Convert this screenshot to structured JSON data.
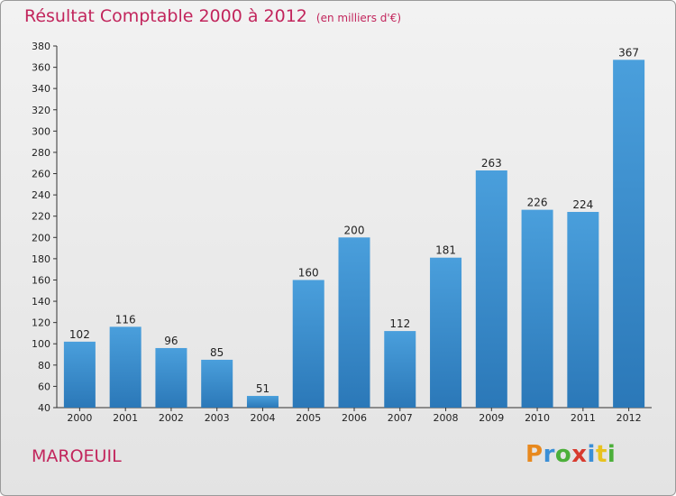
{
  "title": "Résultat Comptable 2000 à 2012",
  "subtitle": "(en milliers d'€)",
  "location": "MAROEUIL",
  "brand": {
    "letters": [
      "P",
      "r",
      "o",
      "x",
      "i",
      "t",
      "i"
    ],
    "colors": [
      "#e8891e",
      "#3b8fd6",
      "#4caf3a",
      "#d83a2e",
      "#3b8fd6",
      "#e8c21e",
      "#4caf3a"
    ]
  },
  "colors": {
    "bar": "#4a9fdc",
    "bar_dark": "#2b78b8",
    "title": "#c2255c"
  },
  "chart_data": {
    "type": "bar",
    "title": "Résultat Comptable 2000 à 2012",
    "subtitle": "(en milliers d'€)",
    "categories": [
      "2000",
      "2001",
      "2002",
      "2003",
      "2004",
      "2005",
      "2006",
      "2007",
      "2008",
      "2009",
      "2010",
      "2011",
      "2012"
    ],
    "values": [
      102,
      116,
      96,
      85,
      51,
      160,
      200,
      112,
      181,
      263,
      226,
      224,
      367
    ],
    "ylim": [
      40,
      380
    ],
    "yticks": [
      40,
      60,
      80,
      100,
      120,
      140,
      160,
      180,
      200,
      220,
      240,
      260,
      280,
      300,
      320,
      340,
      360,
      380
    ],
    "grid": false,
    "xlabel": "",
    "ylabel": ""
  }
}
